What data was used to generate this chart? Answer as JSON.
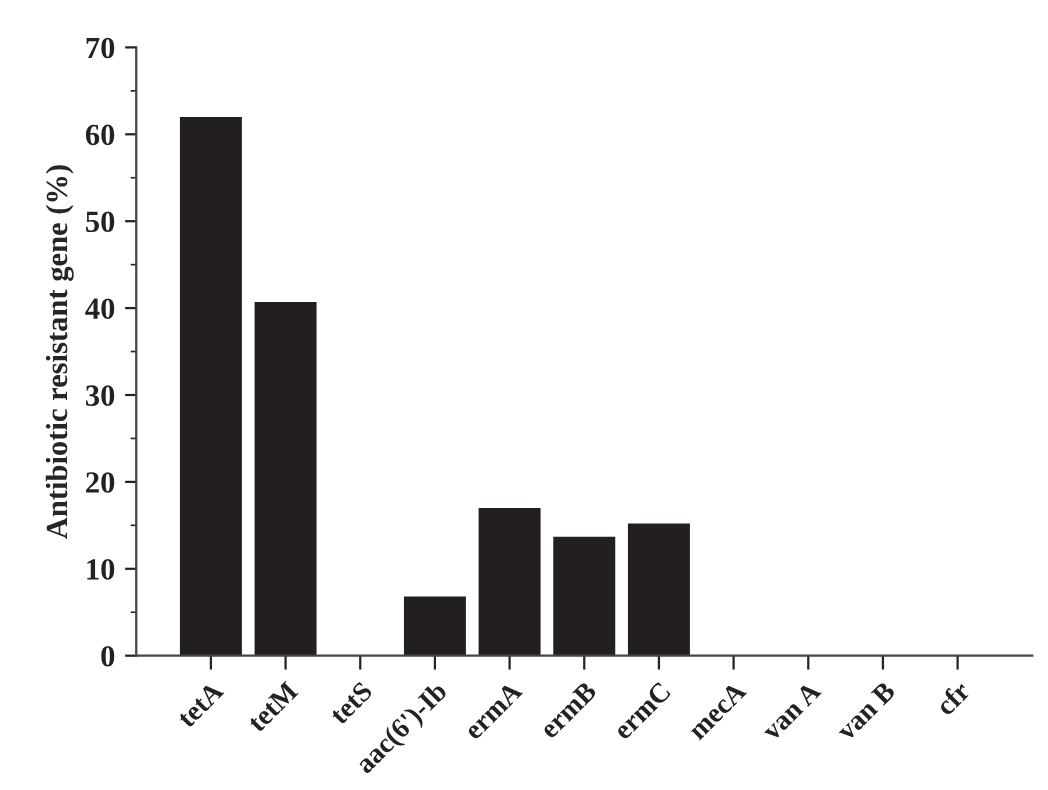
{
  "chart_data": {
    "type": "bar",
    "ylabel": "Antibiotic resistant gene (%)",
    "categories": [
      "tetA",
      "tetM",
      "tetS",
      "aac(6')-Ib",
      "ermA",
      "ermB",
      "ermC",
      "mecA",
      "van A",
      "van B",
      "cfr"
    ],
    "values": [
      62,
      40.7,
      0,
      6.8,
      17,
      13.7,
      15.2,
      0,
      0,
      0,
      0
    ],
    "color": "#231f20",
    "ylim": [
      0,
      70
    ],
    "yticks": [
      0,
      10,
      20,
      30,
      40,
      50,
      60,
      70
    ],
    "grid": false
  }
}
